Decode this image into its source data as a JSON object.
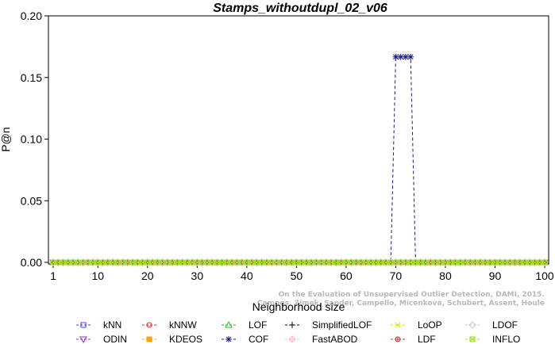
{
  "chart_data": {
    "type": "line",
    "title": "Stamps_withoutdupl_02_v06",
    "xlabel": "Neighborhood size",
    "ylabel": "P@n",
    "xlim": [
      1,
      100
    ],
    "ylim": [
      0,
      0.2
    ],
    "x_ticks": [
      1,
      10,
      20,
      30,
      40,
      50,
      60,
      70,
      80,
      90,
      100
    ],
    "y_ticks": [
      "0.00",
      "0.05",
      "0.10",
      "0.15",
      "0.20"
    ],
    "grid": false,
    "x": {
      "start": 1,
      "end": 100,
      "step": 1
    },
    "series": [
      {
        "name": "kNN",
        "color": "#3b3bff",
        "marker": "square",
        "values_default": 0,
        "overrides": []
      },
      {
        "name": "ODIN",
        "color": "#a020f0",
        "marker": "triangle-down",
        "values_default": 0,
        "overrides": []
      },
      {
        "name": "kNNW",
        "color": "#ff2020",
        "marker": "circle",
        "values_default": 0,
        "overrides": []
      },
      {
        "name": "KDEOS",
        "color": "#ffa500",
        "marker": "square-filled",
        "values_default": 0,
        "overrides": []
      },
      {
        "name": "LOF",
        "color": "#20c020",
        "marker": "triangle-up",
        "values_default": 0,
        "overrides": []
      },
      {
        "name": "COF",
        "color": "#1a1a8c",
        "marker": "asterisk",
        "values_default": 0,
        "overrides": [
          {
            "x": 70,
            "y": 0.1667
          },
          {
            "x": 71,
            "y": 0.1667
          },
          {
            "x": 72,
            "y": 0.1667
          },
          {
            "x": 73,
            "y": 0.1667
          }
        ]
      },
      {
        "name": "SimplifiedLOF",
        "color": "#000000",
        "marker": "plus",
        "values_default": 0,
        "overrides": []
      },
      {
        "name": "FastABOD",
        "color": "#ffb6c1",
        "marker": "diamond-plus",
        "values_default": 0,
        "overrides": []
      },
      {
        "name": "LoOP",
        "color": "#e0e000",
        "marker": "x",
        "values_default": 0,
        "overrides": []
      },
      {
        "name": "LDF",
        "color": "#c03040",
        "marker": "circle-plus",
        "values_default": 0,
        "overrides": []
      },
      {
        "name": "LDOF",
        "color": "#c8c8c8",
        "marker": "diamond",
        "values_default": 0,
        "overrides": []
      },
      {
        "name": "INFLO",
        "color": "#a0e020",
        "marker": "square-x",
        "values_default": 0,
        "overrides": []
      }
    ],
    "legend_position": "bottom",
    "credit_lines": [
      "Campos, Zimek, Sander, Campello, Micenkova, Schubert, Assent, Houle",
      "On the Evaluation of Unsupervised Outlier Detection, DAMI, 2015."
    ]
  }
}
